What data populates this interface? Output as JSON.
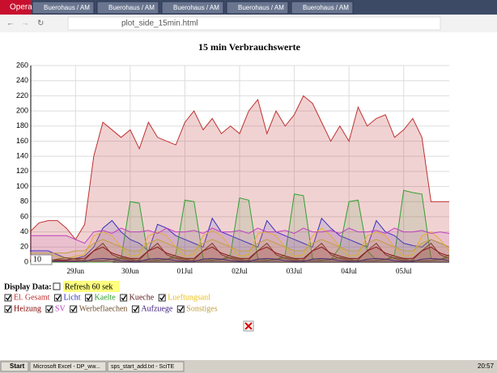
{
  "browser": {
    "tabs": [
      "Opera",
      "Buerohaus / AM",
      "Buerohaus / AM",
      "Buerohaus / AM",
      "Buerohaus / AM",
      "Buerohaus / AM"
    ],
    "address": "plot_side_15min.html"
  },
  "controls": {
    "display_label": "Display Data:",
    "refresh": "Refresh 60 sek",
    "range_box": "10"
  },
  "taskbar": {
    "start": "Start",
    "items": [
      "Microsoft Excel - DP_ww...",
      "sps_start_add.txt - SciTE"
    ],
    "clock": "20:57"
  },
  "chart_data": {
    "type": "line",
    "title": "15 min Verbrauchswerte",
    "categories": [
      null,
      null,
      null,
      null,
      null,
      "29Jun",
      null,
      null,
      null,
      null,
      null,
      "30Jun",
      null,
      null,
      null,
      null,
      null,
      "01Jul",
      null,
      null,
      null,
      null,
      null,
      "02Jul",
      null,
      null,
      null,
      null,
      null,
      "03Jul",
      null,
      null,
      null,
      null,
      null,
      "04Jul",
      null,
      null,
      null,
      null,
      null,
      "05Jul",
      null,
      null,
      null,
      null,
      null
    ],
    "ylim": [
      0,
      260
    ],
    "yticks": [
      0,
      20,
      40,
      60,
      80,
      100,
      120,
      140,
      160,
      180,
      200,
      220,
      240,
      260
    ],
    "grid": true,
    "series": [
      {
        "name": "El. Gesamt",
        "color": "#c03030",
        "values": [
          40,
          52,
          55,
          55,
          45,
          30,
          50,
          140,
          185,
          175,
          165,
          175,
          150,
          185,
          165,
          160,
          155,
          185,
          200,
          175,
          190,
          170,
          180,
          170,
          200,
          215,
          170,
          200,
          180,
          195,
          220,
          210,
          185,
          160,
          180,
          160,
          205,
          180,
          190,
          195,
          165,
          175,
          190,
          165,
          80,
          80,
          80
        ]
      },
      {
        "name": "Licht",
        "color": "#3030c0",
        "values": [
          15,
          15,
          15,
          10,
          5,
          5,
          8,
          20,
          45,
          55,
          40,
          30,
          25,
          15,
          50,
          45,
          35,
          30,
          25,
          20,
          58,
          40,
          35,
          30,
          25,
          20,
          55,
          40,
          35,
          30,
          25,
          20,
          58,
          45,
          35,
          30,
          25,
          20,
          55,
          40,
          35,
          25,
          22,
          20,
          30,
          25,
          20
        ]
      },
      {
        "name": "Kaelte",
        "color": "#30a030",
        "values": [
          0,
          0,
          0,
          0,
          0,
          0,
          0,
          0,
          0,
          0,
          5,
          80,
          78,
          5,
          3,
          3,
          10,
          82,
          80,
          5,
          3,
          3,
          10,
          85,
          82,
          5,
          3,
          3,
          10,
          90,
          88,
          5,
          3,
          3,
          20,
          80,
          82,
          15,
          3,
          3,
          10,
          95,
          92,
          90,
          5,
          3,
          10
        ]
      },
      {
        "name": "Kueche",
        "color": "#602020",
        "values": [
          2,
          2,
          2,
          2,
          2,
          2,
          3,
          15,
          25,
          10,
          5,
          2,
          3,
          15,
          25,
          10,
          5,
          2,
          3,
          15,
          25,
          10,
          5,
          2,
          3,
          15,
          25,
          10,
          5,
          2,
          3,
          15,
          25,
          10,
          5,
          2,
          3,
          15,
          25,
          10,
          5,
          2,
          3,
          15,
          25,
          10,
          5
        ]
      },
      {
        "name": "Lueftungsanl",
        "color": "#e8c020",
        "values": [
          5,
          8,
          10,
          8,
          5,
          8,
          10,
          35,
          40,
          35,
          20,
          8,
          10,
          35,
          40,
          35,
          20,
          8,
          10,
          35,
          42,
          35,
          20,
          8,
          10,
          38,
          40,
          35,
          20,
          8,
          10,
          35,
          45,
          35,
          20,
          8,
          10,
          35,
          40,
          35,
          20,
          8,
          10,
          35,
          40,
          30,
          15
        ]
      },
      {
        "name": "Heizung",
        "color": "#800000",
        "values": [
          3,
          3,
          3,
          3,
          3,
          5,
          5,
          15,
          20,
          12,
          8,
          5,
          5,
          15,
          20,
          12,
          8,
          5,
          5,
          15,
          20,
          12,
          8,
          5,
          5,
          15,
          20,
          12,
          8,
          5,
          5,
          15,
          20,
          12,
          8,
          5,
          5,
          15,
          20,
          12,
          8,
          5,
          5,
          15,
          20,
          12,
          8
        ]
      },
      {
        "name": "SV",
        "color": "#c040c0",
        "values": [
          35,
          35,
          35,
          35,
          35,
          30,
          25,
          40,
          42,
          38,
          45,
          40,
          40,
          42,
          38,
          45,
          40,
          40,
          42,
          38,
          45,
          40,
          40,
          42,
          38,
          45,
          40,
          40,
          42,
          38,
          45,
          40,
          40,
          42,
          38,
          45,
          40,
          40,
          42,
          38,
          45,
          40,
          40,
          42,
          38,
          40,
          38
        ]
      },
      {
        "name": "Werbeflaechen",
        "color": "#705030",
        "values": [
          2,
          2,
          2,
          4,
          6,
          4,
          2,
          2,
          2,
          4,
          6,
          4,
          2,
          2,
          2,
          4,
          6,
          4,
          2,
          2,
          2,
          4,
          6,
          4,
          2,
          2,
          2,
          4,
          6,
          4,
          2,
          2,
          2,
          4,
          6,
          4,
          2,
          2,
          2,
          4,
          6,
          4,
          2,
          2,
          2,
          4,
          6
        ]
      },
      {
        "name": "Aufzuege",
        "color": "#402080",
        "values": [
          1,
          1,
          1,
          1,
          1,
          1,
          1,
          4,
          5,
          4,
          2,
          1,
          1,
          4,
          5,
          4,
          2,
          1,
          1,
          4,
          5,
          4,
          2,
          1,
          1,
          4,
          5,
          4,
          2,
          1,
          1,
          4,
          5,
          4,
          2,
          1,
          1,
          4,
          5,
          4,
          2,
          1,
          1,
          4,
          5,
          4,
          2
        ]
      },
      {
        "name": "Sonstiges",
        "color": "#c0a040",
        "values": [
          12,
          12,
          12,
          12,
          12,
          15,
          15,
          25,
          30,
          25,
          20,
          15,
          15,
          25,
          30,
          25,
          20,
          15,
          15,
          25,
          30,
          25,
          20,
          15,
          15,
          25,
          30,
          25,
          20,
          15,
          15,
          25,
          30,
          25,
          20,
          15,
          15,
          25,
          30,
          25,
          20,
          15,
          15,
          25,
          30,
          25,
          20
        ]
      }
    ]
  }
}
